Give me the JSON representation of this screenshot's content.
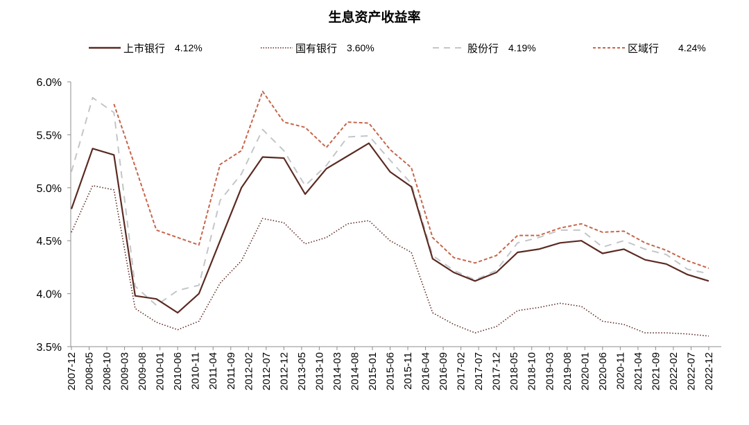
{
  "title": "生息资产收益率",
  "legend": [
    {
      "label": "上市银行",
      "value": "4.12%",
      "style": "solid",
      "color": "#5b2a22"
    },
    {
      "label": "国有银行",
      "value": "3.60%",
      "style": "dotted",
      "color": "#5b2a22"
    },
    {
      "label": "股份行",
      "value": "4.19%",
      "style": "dashed-long",
      "color": "#c2c6c9"
    },
    {
      "label": "区域行",
      "value": "4.24%",
      "style": "dashed",
      "color": "#c7654a"
    }
  ],
  "chart_data": {
    "type": "line",
    "title": "生息资产收益率",
    "xlabel": "",
    "ylabel": "",
    "ylim": [
      3.5,
      6.0
    ],
    "yticks": [
      "3.5%",
      "4.0%",
      "4.5%",
      "5.0%",
      "5.5%",
      "6.0%"
    ],
    "grid": false,
    "legend_position": "top",
    "x_tick_labels": [
      "2007-12",
      "2008-05",
      "2008-10",
      "2009-03",
      "2009-08",
      "2010-01",
      "2010-06",
      "2010-11",
      "2011-04",
      "2011-09",
      "2012-02",
      "2012-07",
      "2012-12",
      "2013-05",
      "2013-10",
      "2014-03",
      "2014-08",
      "2015-01",
      "2015-06",
      "2015-11",
      "2016-04",
      "2016-09",
      "2017-02",
      "2017-07",
      "2017-12",
      "2018-05",
      "2018-10",
      "2019-03",
      "2019-08",
      "2020-01",
      "2020-06",
      "2020-11",
      "2021-04",
      "2021-09",
      "2022-02",
      "2022-07",
      "2022-12"
    ],
    "x": [
      "2007-12",
      "2008-06",
      "2008-12",
      "2009-06",
      "2009-12",
      "2010-06",
      "2010-12",
      "2011-06",
      "2011-12",
      "2012-06",
      "2012-12",
      "2013-06",
      "2013-12",
      "2014-06",
      "2014-12",
      "2015-06",
      "2015-12",
      "2016-06",
      "2016-12",
      "2017-06",
      "2017-12",
      "2018-06",
      "2018-12",
      "2019-06",
      "2019-12",
      "2020-06",
      "2020-12",
      "2021-06",
      "2021-12",
      "2022-06",
      "2022-12"
    ],
    "series": [
      {
        "name": "上市银行",
        "values": [
          4.8,
          5.37,
          5.31,
          3.98,
          3.95,
          3.82,
          4.0,
          4.5,
          5.0,
          5.29,
          5.28,
          4.94,
          5.18,
          5.3,
          5.42,
          5.15,
          5.01,
          4.33,
          4.2,
          4.12,
          4.2,
          4.39,
          4.42,
          4.48,
          4.5,
          4.38,
          4.42,
          4.32,
          4.28,
          4.18,
          4.12
        ]
      },
      {
        "name": "国有银行",
        "values": [
          4.58,
          5.02,
          4.98,
          3.86,
          3.73,
          3.66,
          3.74,
          4.1,
          4.31,
          4.71,
          4.67,
          4.47,
          4.53,
          4.66,
          4.69,
          4.5,
          4.39,
          3.82,
          3.71,
          3.63,
          3.69,
          3.84,
          3.87,
          3.91,
          3.88,
          3.74,
          3.71,
          3.63,
          3.63,
          3.62,
          3.6
        ]
      },
      {
        "name": "股份行",
        "values": [
          5.15,
          5.85,
          5.71,
          4.07,
          3.89,
          4.03,
          4.08,
          4.88,
          5.13,
          5.55,
          5.35,
          5.02,
          5.21,
          5.48,
          5.49,
          5.26,
          5.04,
          4.36,
          4.22,
          4.13,
          4.22,
          4.48,
          4.53,
          4.6,
          4.6,
          4.44,
          4.5,
          4.42,
          4.37,
          4.23,
          4.19
        ]
      },
      {
        "name": "区域行",
        "values": [
          null,
          null,
          5.79,
          5.2,
          4.6,
          4.53,
          4.46,
          5.22,
          5.35,
          5.91,
          5.62,
          5.57,
          5.38,
          5.62,
          5.61,
          5.36,
          5.19,
          4.53,
          4.34,
          4.29,
          4.36,
          4.55,
          4.55,
          4.62,
          4.66,
          4.58,
          4.59,
          4.48,
          4.41,
          4.31,
          4.24
        ]
      }
    ]
  }
}
